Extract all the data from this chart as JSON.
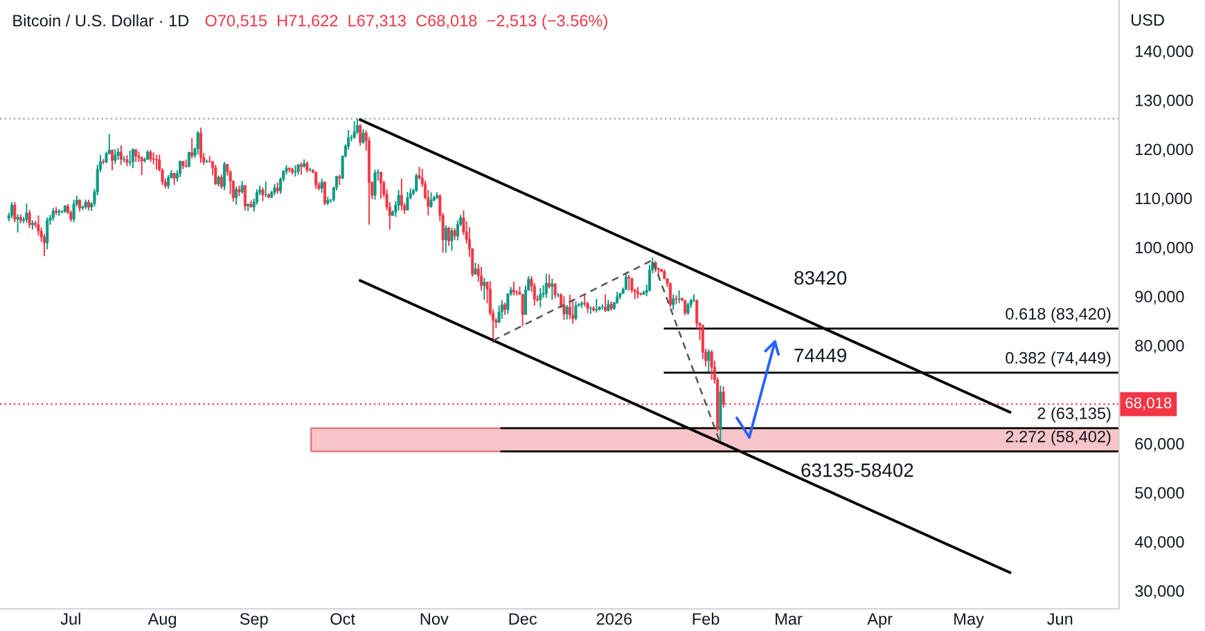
{
  "chart_data": {
    "type": "candlestick",
    "title": "Bitcoin / U.S. Dollar · 1D",
    "subtitle": "O70,515  H71,622  L67,313  C68,018  −2,513 (−3.56%)",
    "ylabel": "USD",
    "xlim": [
      "2025-06-07",
      "2026-06-21"
    ],
    "xticks": [
      {
        "value": "2025-07-01",
        "label": "Jul"
      },
      {
        "value": "2025-08-01",
        "label": "Aug"
      },
      {
        "value": "2025-09-01",
        "label": "Sep"
      },
      {
        "value": "2025-10-01",
        "label": "Oct"
      },
      {
        "value": "2025-11-01",
        "label": "Nov"
      },
      {
        "value": "2025-12-01",
        "label": "Dec"
      },
      {
        "value": "2026-01-01",
        "label": "2026"
      },
      {
        "value": "2026-02-01",
        "label": "Feb"
      },
      {
        "value": "2026-03-01",
        "label": "Mar"
      },
      {
        "value": "2026-04-01",
        "label": "Apr"
      },
      {
        "value": "2026-05-01",
        "label": "May"
      },
      {
        "value": "2026-06-01",
        "label": "Jun"
      }
    ],
    "ylim": [
      26300,
      150400
    ],
    "yticks": [
      {
        "value": 30000,
        "label": "30,000"
      },
      {
        "value": 40000,
        "label": "40,000"
      },
      {
        "value": 50000,
        "label": "50,000"
      },
      {
        "value": 60000,
        "label": "60,000"
      },
      {
        "value": 80000,
        "label": "80,000"
      },
      {
        "value": 90000,
        "label": "90,000"
      },
      {
        "value": 100000,
        "label": "100,000"
      },
      {
        "value": 110000,
        "label": "110,000"
      },
      {
        "value": 120000,
        "label": "120,000"
      },
      {
        "value": 130000,
        "label": "130,000"
      },
      {
        "value": 140000,
        "label": "140,000"
      }
    ],
    "grid": false,
    "series": [
      {
        "colors": [
          "#089981",
          "#089981",
          "#f23645",
          "#089981",
          "#f23645",
          "#089981",
          "#089981",
          "#f23645",
          "#089981",
          "#f23645",
          "#f23645",
          "#f23645",
          "#f23645",
          "#089981",
          "#089981",
          "#089981",
          "#f23645",
          "#089981",
          "#089981",
          "#089981",
          "#f23645",
          "#f23645",
          "#089981",
          "#089981",
          "#f23645",
          "#089981",
          "#089981",
          "#f23645",
          "#089981",
          "#089981",
          "#089981",
          "#089981",
          "#f23645",
          "#089981",
          "#089981",
          "#f23645",
          "#089981",
          "#089981",
          "#f23645",
          "#089981",
          "#f23645",
          "#089981",
          "#089981",
          "#f23645",
          "#f23645",
          "#f23645",
          "#089981",
          "#089981",
          "#f23645",
          "#f23645",
          "#f23645",
          "#f23645",
          "#f23645",
          "#f23645",
          "#089981",
          "#089981",
          "#f23645",
          "#089981",
          "#089981",
          "#f23645",
          "#f23645",
          "#089981",
          "#f23645",
          "#089981",
          "#089981",
          "#f23645",
          "#f23645",
          "#089981",
          "#f23645",
          "#f23645",
          "#f23645",
          "#089981",
          "#f23645",
          "#089981",
          "#f23645",
          "#f23645",
          "#f23645",
          "#089981",
          "#f23645",
          "#089981",
          "#f23645",
          "#089981",
          "#f23645",
          "#089981",
          "#089981",
          "#089981",
          "#f23645",
          "#089981",
          "#f23645",
          "#089981",
          "#089981",
          "#f23645",
          "#089981",
          "#089981",
          "#089981",
          "#f23645",
          "#f23645",
          "#089981",
          "#089981",
          "#f23645",
          "#089981",
          "#f23645",
          "#089981",
          "#f23645",
          "#f23645",
          "#f23645",
          "#089981",
          "#f23645",
          "#089981",
          "#089981",
          "#089981",
          "#089981",
          "#f23645",
          "#089981",
          "#089981",
          "#089981",
          "#089981",
          "#089981",
          "#089981",
          "#f23645",
          "#089981",
          "#f23645",
          "#f23645",
          "#f23645",
          "#089981",
          "#089981",
          "#f23645",
          "#f23645",
          "#f23645",
          "#f23645",
          "#089981",
          "#089981",
          "#089981",
          "#f23645",
          "#f23645",
          "#089981",
          "#089981",
          "#089981",
          "#089981",
          "#f23645",
          "#f23645",
          "#f23645",
          "#f23645",
          "#089981",
          "#089981",
          "#089981",
          "#f23645",
          "#f23645",
          "#089981",
          "#f23645",
          "#089981",
          "#f23645",
          "#089981",
          "#089981",
          "#f23645",
          "#f23645",
          "#f23645",
          "#f23645",
          "#089981",
          "#f23645",
          "#f23645",
          "#089981",
          "#f23645",
          "#f23645",
          "#f23645",
          "#f23645",
          "#089981",
          "#089981",
          "#f23645",
          "#089981",
          "#089981",
          "#f23645",
          "#f23645",
          "#f23645",
          "#f23645",
          "#089981",
          "#089981",
          "#f23645",
          "#f23645",
          "#f23645",
          "#089981",
          "#089981",
          "#089981",
          "#f23645",
          "#089981",
          "#f23645",
          "#089981",
          "#f23645",
          "#f23645",
          "#089981",
          "#f23645",
          "#f23645",
          "#089981",
          "#089981",
          "#089981",
          "#f23645",
          "#f23645",
          "#089981",
          "#f23645",
          "#089981",
          "#089981",
          "#089981",
          "#f23645",
          "#089981",
          "#f23645",
          "#089981",
          "#089981",
          "#089981",
          "#089981",
          "#089981",
          "#f23645",
          "#f23645",
          "#f23645",
          "#f23645",
          "#f23645",
          "#089981",
          "#089981",
          "#089981",
          "#089981",
          "#f23645",
          "#f23645",
          "#f23645",
          "#f23645",
          "#f23645",
          "#f23645",
          "#089981",
          "#f23645",
          "#089981",
          "#f23645",
          "#f23645",
          "#089981",
          "#089981",
          "#089981",
          "#f23645",
          "#f23645",
          "#f23645",
          "#f23645",
          "#089981",
          "#f23645",
          "#f23645",
          "#f23645",
          "#089981",
          "#f23645"
        ],
        "x": [
          "2025-06-10",
          "2025-06-11",
          "2025-06-12",
          "2025-06-13",
          "2025-06-14",
          "2025-06-15",
          "2025-06-16",
          "2025-06-17",
          "2025-06-18",
          "2025-06-19",
          "2025-06-20",
          "2025-06-21",
          "2025-06-22",
          "2025-06-23",
          "2025-06-24",
          "2025-06-25",
          "2025-06-26",
          "2025-06-27",
          "2025-06-28",
          "2025-06-29",
          "2025-06-30",
          "2025-07-01",
          "2025-07-02",
          "2025-07-03",
          "2025-07-04",
          "2025-07-05",
          "2025-07-06",
          "2025-07-07",
          "2025-07-08",
          "2025-07-09",
          "2025-07-10",
          "2025-07-11",
          "2025-07-12",
          "2025-07-13",
          "2025-07-14",
          "2025-07-15",
          "2025-07-16",
          "2025-07-17",
          "2025-07-18",
          "2025-07-19",
          "2025-07-20",
          "2025-07-21",
          "2025-07-22",
          "2025-07-23",
          "2025-07-24",
          "2025-07-25",
          "2025-07-26",
          "2025-07-27",
          "2025-07-28",
          "2025-07-29",
          "2025-07-30",
          "2025-07-31",
          "2025-08-01",
          "2025-08-02",
          "2025-08-03",
          "2025-08-04",
          "2025-08-05",
          "2025-08-06",
          "2025-08-07",
          "2025-08-08",
          "2025-08-09",
          "2025-08-10",
          "2025-08-11",
          "2025-08-12",
          "2025-08-13",
          "2025-08-14",
          "2025-08-15",
          "2025-08-16",
          "2025-08-17",
          "2025-08-18",
          "2025-08-19",
          "2025-08-20",
          "2025-08-21",
          "2025-08-22",
          "2025-08-23",
          "2025-08-24",
          "2025-08-25",
          "2025-08-26",
          "2025-08-27",
          "2025-08-28",
          "2025-08-29",
          "2025-08-30",
          "2025-08-31",
          "2025-09-01",
          "2025-09-02",
          "2025-09-03",
          "2025-09-04",
          "2025-09-05",
          "2025-09-06",
          "2025-09-07",
          "2025-09-08",
          "2025-09-09",
          "2025-09-10",
          "2025-09-11",
          "2025-09-12",
          "2025-09-13",
          "2025-09-14",
          "2025-09-15",
          "2025-09-16",
          "2025-09-17",
          "2025-09-18",
          "2025-09-19",
          "2025-09-20",
          "2025-09-21",
          "2025-09-22",
          "2025-09-23",
          "2025-09-24",
          "2025-09-25",
          "2025-09-26",
          "2025-09-27",
          "2025-09-28",
          "2025-09-29",
          "2025-09-30",
          "2025-10-01",
          "2025-10-02",
          "2025-10-03",
          "2025-10-04",
          "2025-10-05",
          "2025-10-06",
          "2025-10-07",
          "2025-10-08",
          "2025-10-09",
          "2025-10-10",
          "2025-10-11",
          "2025-10-12",
          "2025-10-13",
          "2025-10-14",
          "2025-10-15",
          "2025-10-16",
          "2025-10-17",
          "2025-10-18",
          "2025-10-19",
          "2025-10-20",
          "2025-10-21",
          "2025-10-22",
          "2025-10-23",
          "2025-10-24",
          "2025-10-25",
          "2025-10-26",
          "2025-10-27",
          "2025-10-28",
          "2025-10-29",
          "2025-10-30",
          "2025-10-31",
          "2025-11-01",
          "2025-11-02",
          "2025-11-03",
          "2025-11-04",
          "2025-11-05",
          "2025-11-06",
          "2025-11-07",
          "2025-11-08",
          "2025-11-09",
          "2025-11-10",
          "2025-11-11",
          "2025-11-12",
          "2025-11-13",
          "2025-11-14",
          "2025-11-15",
          "2025-11-16",
          "2025-11-17",
          "2025-11-18",
          "2025-11-19",
          "2025-11-20",
          "2025-11-21",
          "2025-11-22",
          "2025-11-23",
          "2025-11-24",
          "2025-11-25",
          "2025-11-26",
          "2025-11-27",
          "2025-11-28",
          "2025-11-29",
          "2025-11-30",
          "2025-12-01",
          "2025-12-02",
          "2025-12-03",
          "2025-12-04",
          "2025-12-05",
          "2025-12-06",
          "2025-12-07",
          "2025-12-08",
          "2025-12-09",
          "2025-12-10",
          "2025-12-11",
          "2025-12-12",
          "2025-12-13",
          "2025-12-14",
          "2025-12-15",
          "2025-12-16",
          "2025-12-17",
          "2025-12-18",
          "2025-12-19",
          "2025-12-20",
          "2025-12-21",
          "2025-12-22",
          "2025-12-23",
          "2025-12-24",
          "2025-12-25",
          "2025-12-26",
          "2025-12-27",
          "2025-12-28",
          "2025-12-29",
          "2025-12-30",
          "2025-12-31",
          "2026-01-01",
          "2026-01-02",
          "2026-01-03",
          "2026-01-04",
          "2026-01-05",
          "2026-01-06",
          "2026-01-07",
          "2026-01-08",
          "2026-01-09",
          "2026-01-10",
          "2026-01-11",
          "2026-01-12",
          "2026-01-13",
          "2026-01-14",
          "2026-01-15",
          "2026-01-16",
          "2026-01-17",
          "2026-01-18",
          "2026-01-19",
          "2026-01-20",
          "2026-01-21",
          "2026-01-22",
          "2026-01-23",
          "2026-01-24",
          "2026-01-25",
          "2026-01-26",
          "2026-01-27",
          "2026-01-28",
          "2026-01-29",
          "2026-01-30",
          "2026-01-31",
          "2026-02-01",
          "2026-02-02",
          "2026-02-03",
          "2026-02-04",
          "2026-02-05",
          "2026-02-06",
          "2026-02-07"
        ],
        "ohlc": [
          [
            105900,
            107100,
            105300,
            106500
          ],
          [
            106500,
            109200,
            105900,
            108600
          ],
          [
            108600,
            109200,
            105100,
            105700
          ],
          [
            105700,
            106700,
            103000,
            106100
          ],
          [
            106100,
            106700,
            104900,
            105500
          ],
          [
            105500,
            106200,
            104900,
            105600
          ],
          [
            105600,
            108900,
            105000,
            107000
          ],
          [
            107000,
            107600,
            103900,
            104600
          ],
          [
            104600,
            105500,
            103600,
            104900
          ],
          [
            104900,
            105400,
            104000,
            104600
          ],
          [
            104600,
            106500,
            102400,
            103300
          ],
          [
            103300,
            104000,
            101100,
            102100
          ],
          [
            102100,
            102700,
            98200,
            100900
          ],
          [
            100900,
            106100,
            99600,
            105500
          ],
          [
            105500,
            106600,
            104600,
            106000
          ],
          [
            106000,
            108000,
            105400,
            107400
          ],
          [
            107400,
            108200,
            106600,
            107100
          ],
          [
            107100,
            107800,
            106400,
            107300
          ],
          [
            107300,
            107600,
            106900,
            107300
          ],
          [
            107300,
            108600,
            107000,
            108400
          ],
          [
            108400,
            108800,
            106800,
            107100
          ],
          [
            107100,
            107500,
            105200,
            105700
          ],
          [
            105700,
            109700,
            105100,
            108800
          ],
          [
            108800,
            110500,
            108300,
            109600
          ],
          [
            109600,
            109800,
            107300,
            108000
          ],
          [
            108000,
            108500,
            107600,
            108200
          ],
          [
            108200,
            109700,
            107800,
            109200
          ],
          [
            109200,
            109700,
            107500,
            108200
          ],
          [
            108200,
            109200,
            107400,
            108900
          ],
          [
            108900,
            111900,
            108300,
            111300
          ],
          [
            111300,
            116800,
            110600,
            115900
          ],
          [
            115900,
            118800,
            115300,
            117500
          ],
          [
            117500,
            118000,
            116900,
            117400
          ],
          [
            117400,
            119500,
            117100,
            119100
          ],
          [
            119100,
            123100,
            118900,
            119800
          ],
          [
            119800,
            119900,
            115700,
            117700
          ],
          [
            117700,
            120000,
            117000,
            118700
          ],
          [
            118700,
            120200,
            117800,
            119400
          ],
          [
            119400,
            120800,
            116800,
            117900
          ],
          [
            117900,
            118600,
            117300,
            117900
          ],
          [
            117900,
            118800,
            116500,
            117300
          ],
          [
            117300,
            119700,
            116600,
            117400
          ],
          [
            117400,
            120200,
            116100,
            119900
          ],
          [
            119900,
            120000,
            117400,
            118600
          ],
          [
            118600,
            119500,
            117400,
            118300
          ],
          [
            118300,
            118500,
            114700,
            117600
          ],
          [
            117600,
            118300,
            117300,
            117900
          ],
          [
            117900,
            119800,
            117800,
            119400
          ],
          [
            119400,
            119800,
            117400,
            118000
          ],
          [
            118000,
            119300,
            116900,
            117900
          ],
          [
            117900,
            118800,
            115800,
            117800
          ],
          [
            117800,
            118900,
            115500,
            115700
          ],
          [
            115700,
            116100,
            112700,
            113300
          ],
          [
            113300,
            114000,
            112000,
            112500
          ],
          [
            112500,
            114700,
            111900,
            114200
          ],
          [
            114200,
            115700,
            114000,
            115100
          ],
          [
            115100,
            115100,
            112700,
            114100
          ],
          [
            114100,
            115700,
            113400,
            115000
          ],
          [
            115000,
            117700,
            114300,
            117500
          ],
          [
            117500,
            117600,
            115900,
            116600
          ],
          [
            116600,
            117900,
            116300,
            116500
          ],
          [
            116500,
            119500,
            116300,
            119300
          ],
          [
            119300,
            122300,
            118100,
            118700
          ],
          [
            118700,
            120300,
            118200,
            120100
          ],
          [
            120100,
            123700,
            118900,
            123300
          ],
          [
            123300,
            124400,
            117200,
            118300
          ],
          [
            118300,
            119200,
            116800,
            117400
          ],
          [
            117400,
            117900,
            117200,
            117500
          ],
          [
            117500,
            118600,
            117300,
            117400
          ],
          [
            117400,
            117600,
            114700,
            116200
          ],
          [
            116200,
            116800,
            112700,
            112900
          ],
          [
            112900,
            114600,
            112400,
            114300
          ],
          [
            114300,
            114800,
            111900,
            112400
          ],
          [
            112400,
            117400,
            111600,
            116900
          ],
          [
            116900,
            117000,
            114600,
            115400
          ],
          [
            115400,
            115700,
            110800,
            113500
          ],
          [
            113500,
            113600,
            109300,
            110100
          ],
          [
            110100,
            112400,
            108700,
            111800
          ],
          [
            111800,
            112600,
            110400,
            111300
          ],
          [
            111300,
            113500,
            110900,
            112600
          ],
          [
            112600,
            112600,
            107500,
            108400
          ],
          [
            108400,
            108900,
            107400,
            108800
          ],
          [
            108800,
            109500,
            108100,
            108200
          ],
          [
            108200,
            109900,
            107300,
            109200
          ],
          [
            109200,
            111800,
            108700,
            111200
          ],
          [
            111200,
            112600,
            110600,
            111700
          ],
          [
            111700,
            112200,
            109400,
            110700
          ],
          [
            110700,
            113400,
            110200,
            110700
          ],
          [
            110700,
            111000,
            110000,
            110200
          ],
          [
            110200,
            111500,
            110000,
            111200
          ],
          [
            111200,
            112900,
            110600,
            112100
          ],
          [
            112100,
            113200,
            110900,
            111500
          ],
          [
            111500,
            114200,
            110900,
            113900
          ],
          [
            113900,
            115700,
            113400,
            115500
          ],
          [
            115500,
            116700,
            114800,
            116100
          ],
          [
            116100,
            116300,
            115300,
            115900
          ],
          [
            115900,
            116200,
            114800,
            115300
          ],
          [
            115300,
            116700,
            114400,
            115400
          ],
          [
            115400,
            117000,
            114800,
            116800
          ],
          [
            116800,
            117300,
            114800,
            116500
          ],
          [
            116500,
            117900,
            116200,
            117100
          ],
          [
            117100,
            117500,
            115200,
            115700
          ],
          [
            115700,
            116200,
            115500,
            115700
          ],
          [
            115700,
            115900,
            115100,
            115300
          ],
          [
            115300,
            115400,
            111900,
            112700
          ],
          [
            112700,
            113300,
            111600,
            112000
          ],
          [
            112000,
            114000,
            111100,
            113300
          ],
          [
            113300,
            113400,
            108600,
            109000
          ],
          [
            109000,
            110300,
            108600,
            109600
          ],
          [
            109600,
            109800,
            109100,
            109700
          ],
          [
            109700,
            112300,
            109300,
            112200
          ],
          [
            112200,
            114600,
            111600,
            114400
          ],
          [
            114400,
            114800,
            112700,
            114100
          ],
          [
            114100,
            118700,
            113900,
            118600
          ],
          [
            118600,
            121000,
            118300,
            120600
          ],
          [
            120600,
            123900,
            119900,
            122300
          ],
          [
            122300,
            122900,
            121600,
            122400
          ],
          [
            122400,
            125700,
            122100,
            123500
          ],
          [
            123500,
            126200,
            123100,
            124800
          ],
          [
            124800,
            125100,
            120700,
            121400
          ],
          [
            121400,
            124100,
            121100,
            123300
          ],
          [
            123300,
            123800,
            119700,
            121700
          ],
          [
            121700,
            122500,
            104600,
            113200
          ],
          [
            113200,
            113400,
            109800,
            110600
          ],
          [
            110600,
            115800,
            109700,
            115200
          ],
          [
            115200,
            115900,
            113600,
            115300
          ],
          [
            115300,
            115400,
            109900,
            113100
          ],
          [
            113100,
            113600,
            110200,
            110800
          ],
          [
            110800,
            111800,
            107500,
            108200
          ],
          [
            108200,
            109200,
            103600,
            106500
          ],
          [
            106500,
            107500,
            106400,
            107200
          ],
          [
            107200,
            109400,
            106200,
            108600
          ],
          [
            108600,
            111700,
            107500,
            110600
          ],
          [
            110600,
            114000,
            107500,
            108500
          ],
          [
            108500,
            109000,
            106800,
            107600
          ],
          [
            107600,
            111300,
            107500,
            110100
          ],
          [
            110100,
            112000,
            109800,
            111000
          ],
          [
            111000,
            111900,
            110600,
            111600
          ],
          [
            111600,
            115000,
            111300,
            114600
          ],
          [
            114600,
            116400,
            113800,
            114100
          ],
          [
            114100,
            116000,
            112300,
            112900
          ],
          [
            112900,
            113600,
            109800,
            110100
          ],
          [
            110100,
            111700,
            106500,
            108300
          ],
          [
            108300,
            111200,
            108000,
            109600
          ],
          [
            109600,
            110500,
            109400,
            110100
          ],
          [
            110100,
            111200,
            109800,
            110500
          ],
          [
            110500,
            110800,
            105300,
            106500
          ],
          [
            106500,
            107000,
            98900,
            101500
          ],
          [
            101500,
            104500,
            98900,
            103900
          ],
          [
            103900,
            104200,
            100300,
            101300
          ],
          [
            101300,
            104000,
            99300,
            103400
          ],
          [
            103400,
            103900,
            101500,
            102300
          ],
          [
            102300,
            105500,
            101400,
            104700
          ],
          [
            104700,
            106600,
            104300,
            106000
          ],
          [
            106000,
            107500,
            102500,
            103100
          ],
          [
            103100,
            105300,
            100800,
            101600
          ],
          [
            101600,
            104100,
            98000,
            99700
          ],
          [
            99700,
            99800,
            94000,
            94500
          ],
          [
            94500,
            96800,
            94500,
            95600
          ],
          [
            95600,
            96600,
            93000,
            94200
          ],
          [
            94200,
            96000,
            91200,
            92200
          ],
          [
            92200,
            93800,
            89300,
            92900
          ],
          [
            92900,
            92900,
            88600,
            91500
          ],
          [
            91500,
            93100,
            86100,
            86600
          ],
          [
            86600,
            87400,
            80600,
            85100
          ],
          [
            85100,
            85600,
            83500,
            84700
          ],
          [
            84700,
            88100,
            84600,
            86800
          ],
          [
            86800,
            89200,
            85400,
            88300
          ],
          [
            88300,
            88700,
            86200,
            87300
          ],
          [
            87300,
            90600,
            86400,
            90500
          ],
          [
            90500,
            91900,
            90100,
            91300
          ],
          [
            91300,
            93000,
            90200,
            90900
          ],
          [
            90900,
            91200,
            90200,
            90800
          ],
          [
            90800,
            92000,
            90300,
            90400
          ],
          [
            90400,
            90400,
            83900,
            86300
          ],
          [
            86300,
            92200,
            86200,
            91300
          ],
          [
            91300,
            94100,
            91100,
            93500
          ],
          [
            93500,
            94100,
            90900,
            92100
          ],
          [
            92100,
            92700,
            88100,
            89400
          ],
          [
            89400,
            90200,
            88900,
            89300
          ],
          [
            89300,
            91700,
            87800,
            90400
          ],
          [
            90400,
            92300,
            89700,
            90600
          ],
          [
            90600,
            94600,
            89700,
            92700
          ],
          [
            92700,
            94500,
            91600,
            92000
          ],
          [
            92000,
            93600,
            89300,
            92500
          ],
          [
            92500,
            92700,
            89600,
            90300
          ],
          [
            90300,
            90700,
            89800,
            90300
          ],
          [
            90300,
            90600,
            87600,
            88200
          ],
          [
            88200,
            90000,
            85200,
            86400
          ],
          [
            86400,
            88200,
            85300,
            87800
          ],
          [
            87800,
            90300,
            85300,
            86200
          ],
          [
            86200,
            89400,
            84400,
            85500
          ],
          [
            85500,
            89000,
            85100,
            88100
          ],
          [
            88100,
            88600,
            87900,
            88300
          ],
          [
            88300,
            89000,
            87600,
            88600
          ],
          [
            88600,
            90600,
            87900,
            88500
          ],
          [
            88500,
            88900,
            86600,
            87600
          ],
          [
            87600,
            88000,
            86400,
            87600
          ],
          [
            87600,
            88000,
            86900,
            87200
          ],
          [
            87200,
            89500,
            86700,
            87300
          ],
          [
            87300,
            88000,
            87100,
            87800
          ],
          [
            87800,
            88400,
            87300,
            87800
          ],
          [
            87800,
            90400,
            86800,
            87100
          ],
          [
            87100,
            89300,
            86900,
            88400
          ],
          [
            88400,
            89000,
            87100,
            87500
          ],
          [
            87500,
            88900,
            87300,
            88700
          ],
          [
            88700,
            90900,
            88400,
            89900
          ],
          [
            89900,
            90700,
            89400,
            90600
          ],
          [
            90600,
            91800,
            90500,
            91400
          ],
          [
            91400,
            94700,
            91300,
            93900
          ],
          [
            93900,
            94400,
            91200,
            93700
          ],
          [
            93700,
            93700,
            90700,
            91300
          ],
          [
            91300,
            91500,
            89400,
            91000
          ],
          [
            91000,
            91900,
            89600,
            90500
          ],
          [
            90500,
            90800,
            90200,
            90400
          ],
          [
            90400,
            91200,
            90300,
            90800
          ],
          [
            90800,
            92400,
            90000,
            91200
          ],
          [
            91200,
            96400,
            91000,
            95400
          ],
          [
            95400,
            97900,
            94700,
            96900
          ],
          [
            96900,
            97200,
            94900,
            95600
          ],
          [
            95600,
            95900,
            94300,
            95500
          ],
          [
            95500,
            95600,
            94900,
            95100
          ],
          [
            95100,
            95500,
            93500,
            93600
          ],
          [
            93600,
            93600,
            91900,
            92600
          ],
          [
            92600,
            92800,
            87800,
            88300
          ],
          [
            88300,
            90400,
            87200,
            89500
          ],
          [
            89500,
            90200,
            88400,
            89400
          ],
          [
            89400,
            91200,
            88600,
            89500
          ],
          [
            89500,
            89800,
            89000,
            89200
          ],
          [
            89200,
            89200,
            86100,
            86600
          ],
          [
            86600,
            88700,
            86200,
            88300
          ],
          [
            88300,
            89500,
            87600,
            89200
          ],
          [
            89200,
            90400,
            88800,
            89200
          ],
          [
            89200,
            89300,
            83400,
            84500
          ],
          [
            84500,
            84700,
            81100,
            84100
          ],
          [
            84100,
            84200,
            77200,
            78600
          ],
          [
            78600,
            79300,
            75700,
            76900
          ],
          [
            76900,
            79200,
            74600,
            78700
          ],
          [
            78700,
            79000,
            73000,
            75600
          ],
          [
            75600,
            76900,
            72200,
            73000
          ],
          [
            73000,
            73500,
            62500,
            62900
          ],
          [
            62900,
            71800,
            60000,
            70515
          ],
          [
            70515,
            71622,
            67313,
            68018
          ]
        ]
      },
      {
        "type": "line",
        "color": "#000000",
        "x": [
          "2025-10-07",
          "2026-05-15"
        ],
        "values": [
          126000,
          66400
        ]
      },
      {
        "type": "line",
        "color": "#000000",
        "x": [
          "2025-10-07",
          "2026-05-15"
        ],
        "values": [
          93200,
          33700
        ]
      },
      {
        "type": "line",
        "color": "#555555",
        "line_style": "dashed",
        "x": [
          "2025-11-21",
          "2026-01-14",
          "2026-02-06"
        ],
        "values": [
          81000,
          97400,
          60000
        ]
      }
    ],
    "ref_lines": [
      {
        "axis": "y",
        "value": 126200,
        "color": "#9e9e9e",
        "line_style": "dotted"
      },
      {
        "axis": "y",
        "value": 68018,
        "label": "68,018",
        "color": "#f23645",
        "line_style": "dotted"
      },
      {
        "axis": "y",
        "value": 83420,
        "label": "0.618 (83,420)",
        "color": "#000000"
      },
      {
        "axis": "y",
        "value": 74449,
        "label": "0.382 (74,449)",
        "color": "#000000"
      },
      {
        "axis": "y",
        "value": 63135,
        "label": "2 (63,135)",
        "color": "#000000"
      },
      {
        "axis": "y",
        "value": 58402,
        "label": "2.272 (58,402)",
        "color": "#000000"
      }
    ],
    "bands": [
      {
        "axis": "y",
        "from": 58402,
        "to": 63135,
        "color": "#f7c5c9"
      }
    ],
    "annotations": [
      "83420",
      "74449",
      "63135-58402"
    ]
  }
}
